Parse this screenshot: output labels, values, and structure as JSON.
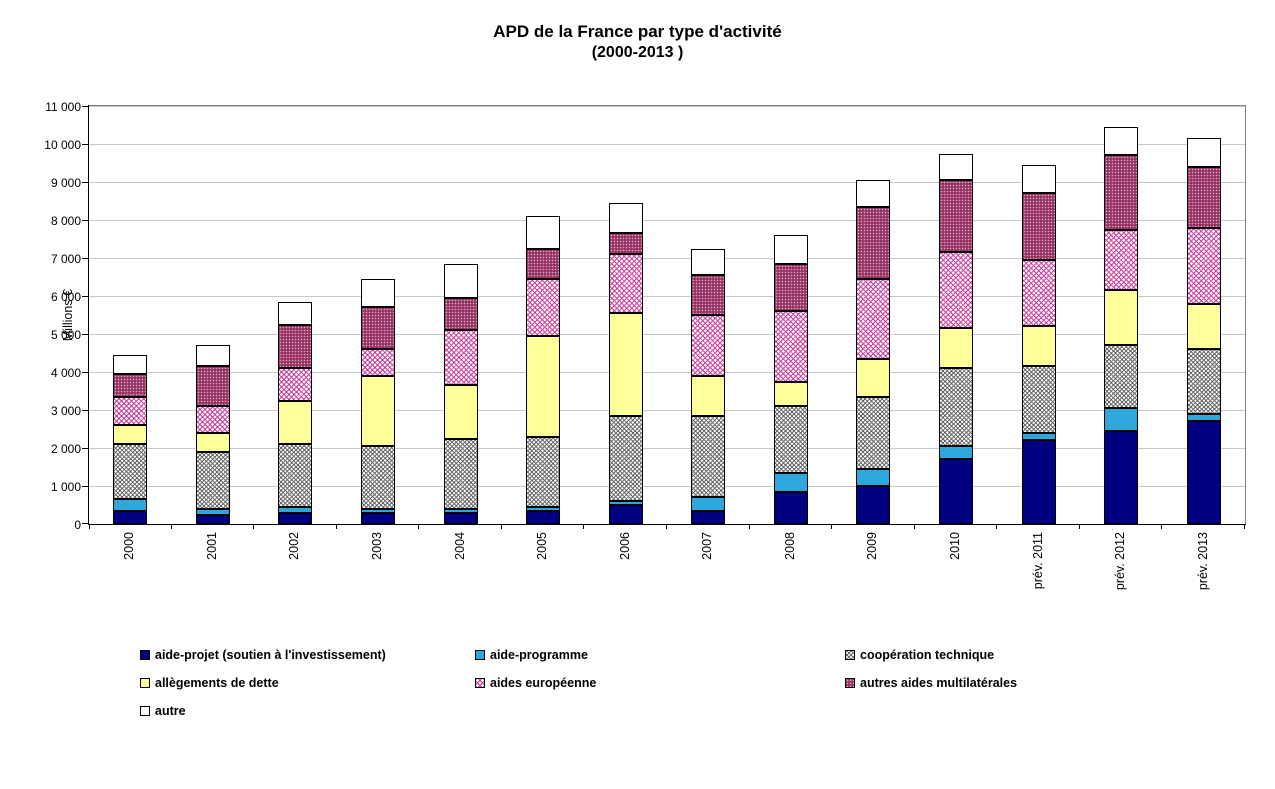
{
  "title": {
    "line1": "APD de la France par type d'activité",
    "line2": "(2000-2013 )"
  },
  "y_axis": {
    "label": "Millions €",
    "ticks": [
      "0",
      "1 000",
      "2 000",
      "3 000",
      "4 000",
      "5 000",
      "6 000",
      "7 000",
      "8 000",
      "9 000",
      "10 000",
      "11 000"
    ]
  },
  "colors": {
    "gridline": "#c8c8c8",
    "plot_border": "#808080",
    "axis": "#000000"
  },
  "chart_data": {
    "type": "bar",
    "stacked": true,
    "title": "APD de la France par type d'activité (2000-2013 )",
    "xlabel": "",
    "ylabel": "Millions €",
    "ylim": [
      0,
      11000
    ],
    "y_step": 1000,
    "grid": true,
    "legend_position": "bottom",
    "categories": [
      "2000",
      "2001",
      "2002",
      "2003",
      "2004",
      "2005",
      "2006",
      "2007",
      "2008",
      "2009",
      "2010",
      "prév. 2011",
      "prév. 2012",
      "prév. 2013"
    ],
    "series": [
      {
        "name": "aide-projet (soutien à l'investissement)",
        "key": "aide-projet",
        "color": "#000080",
        "pattern": "solid",
        "values": [
          350,
          250,
          300,
          300,
          300,
          350,
          500,
          350,
          850,
          1000,
          1700,
          2200,
          2450,
          2700
        ]
      },
      {
        "name": "aide-programme",
        "key": "aide-programme",
        "color": "#2EA8DC",
        "pattern": "solid",
        "values": [
          300,
          150,
          150,
          100,
          100,
          100,
          100,
          350,
          500,
          450,
          350,
          200,
          600,
          200
        ]
      },
      {
        "name": "coopération technique",
        "key": "cooperation-technique",
        "color": "#5F5F5F",
        "pattern": "crosshatch-gray",
        "values": [
          1450,
          1500,
          1650,
          1650,
          1850,
          1850,
          2250,
          2150,
          1750,
          1900,
          2050,
          1750,
          1650,
          1700
        ]
      },
      {
        "name": "allègements de dette",
        "key": "allegements-dette",
        "color": "#FFFF99",
        "pattern": "solid",
        "values": [
          500,
          500,
          1150,
          1850,
          1400,
          2650,
          2700,
          1050,
          650,
          1000,
          1050,
          1050,
          1450,
          1200
        ]
      },
      {
        "name": "aides européenne",
        "key": "aides-europeenne",
        "color": "#CC3399",
        "pattern": "crosshatch-magenta",
        "values": [
          750,
          700,
          850,
          700,
          1450,
          1500,
          1550,
          1600,
          1850,
          2100,
          2000,
          1750,
          1600,
          2000
        ]
      },
      {
        "name": "autres aides multilatérales",
        "key": "autres-multilaterales",
        "color": "#993366",
        "pattern": "speckled-plum",
        "values": [
          600,
          1050,
          1150,
          1100,
          850,
          800,
          550,
          1050,
          1250,
          1900,
          1900,
          1750,
          1950,
          1600
        ]
      },
      {
        "name": "autre",
        "key": "autre",
        "color": "#FFFFFF",
        "pattern": "solid",
        "values": [
          500,
          550,
          600,
          750,
          900,
          850,
          800,
          700,
          750,
          700,
          700,
          750,
          750,
          750
        ]
      }
    ]
  }
}
